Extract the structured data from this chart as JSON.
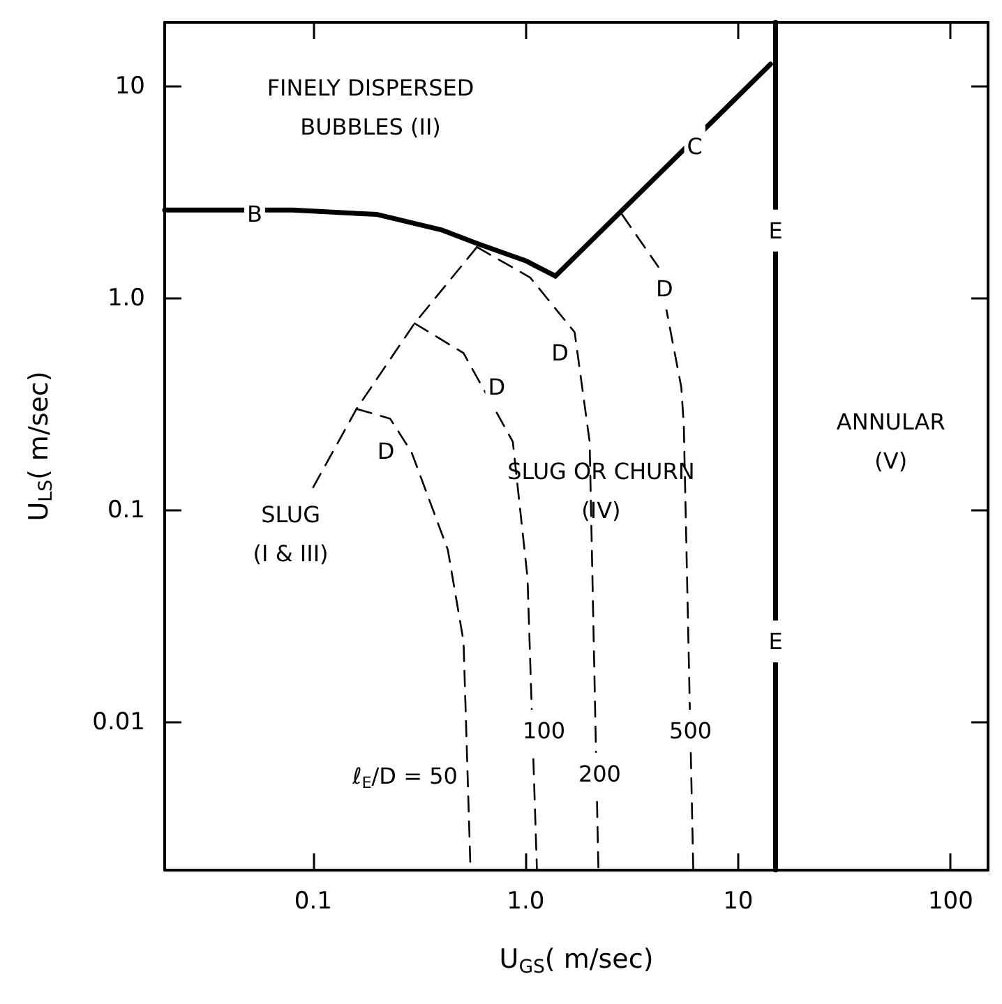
{
  "chart_data": {
    "type": "line",
    "xlabel": "U$_{GS}$( m/sec)",
    "ylabel": "U$_{LS}$( m/sec)",
    "log": "xy",
    "xlim": [
      0.02,
      150
    ],
    "ylim": [
      0.002,
      20
    ],
    "xticks": [
      0.1,
      {
        "value": 1,
        "label": "1.0"
      },
      10,
      100
    ],
    "yticks": [
      0.01,
      0.1,
      {
        "value": 1,
        "label": "1.0"
      },
      10
    ],
    "grid": false,
    "marker": "none",
    "series": [
      {
        "color": "#000000",
        "line_style": "solid",
        "x": [
          0.02,
          0.08,
          0.2,
          0.4,
          0.6,
          1.0,
          1.38
        ],
        "values": [
          2.6,
          2.6,
          2.48,
          2.1,
          1.8,
          1.5,
          1.27
        ]
      },
      {
        "color": "#000000",
        "line_style": "solid",
        "x": [
          1.38,
          14.2
        ],
        "values": [
          1.27,
          12.7
        ]
      },
      {
        "color": "#000000",
        "line_style": "solid",
        "x": [
          15,
          15
        ],
        "values": [
          0.002,
          20
        ]
      },
      {
        "color": "#000000",
        "line_style": "dashed",
        "x": [
          0.1,
          0.16,
          0.3,
          0.59
        ],
        "values": [
          0.128,
          0.3,
          0.76,
          1.74
        ]
      },
      {
        "color": "#000000",
        "line_style": "dashed",
        "x": [
          0.16,
          0.23,
          0.29,
          0.43,
          0.51,
          0.55
        ],
        "values": [
          0.3,
          0.27,
          0.188,
          0.065,
          0.024,
          0.002
        ]
      },
      {
        "color": "#000000",
        "line_style": "dashed",
        "x": [
          0.3,
          0.51,
          0.87,
          1.02,
          1.13
        ],
        "values": [
          0.76,
          0.55,
          0.21,
          0.048,
          0.002
        ]
      },
      {
        "color": "#000000",
        "line_style": "dashed",
        "x": [
          0.59,
          1.05,
          1.7,
          2.0,
          2.2
        ],
        "values": [
          1.74,
          1.25,
          0.69,
          0.21,
          0.002
        ]
      },
      {
        "color": "#000000",
        "line_style": "dashed",
        "x": [
          2.84,
          4.2,
          5.4,
          5.55,
          6.15
        ],
        "values": [
          2.48,
          1.41,
          0.38,
          0.25,
          0.002
        ]
      }
    ],
    "annotations": [
      {
        "text": "B",
        "x": 0.053,
        "y": 2.5
      },
      {
        "text": "C",
        "x": 6.25,
        "y": 5.2
      },
      {
        "text": "E",
        "x": 15,
        "y": 2.08
      },
      {
        "text": "E",
        "x": 15,
        "y": 0.024
      },
      {
        "text": "D",
        "x": 4.5,
        "y": 1.11
      },
      {
        "text": "D",
        "x": 1.45,
        "y": 0.55
      },
      {
        "text": "D",
        "x": 0.73,
        "y": 0.38
      },
      {
        "text": "D",
        "x": 0.22,
        "y": 0.19
      },
      "FINELY DISPERSED\nBUBBLES (II)",
      "SLUG OR CHURN\n(IV)",
      "SLUG\n(I & III)",
      "ANNULAR\n(V)",
      "ℓ$_{E}$/D = 50",
      {
        "text": "100",
        "x": 1.22,
        "y": 0.0091
      },
      {
        "text": "200",
        "x": 2.23,
        "y": 0.0057
      },
      {
        "text": "500",
        "x": 5.97,
        "y": 0.0091
      }
    ]
  }
}
